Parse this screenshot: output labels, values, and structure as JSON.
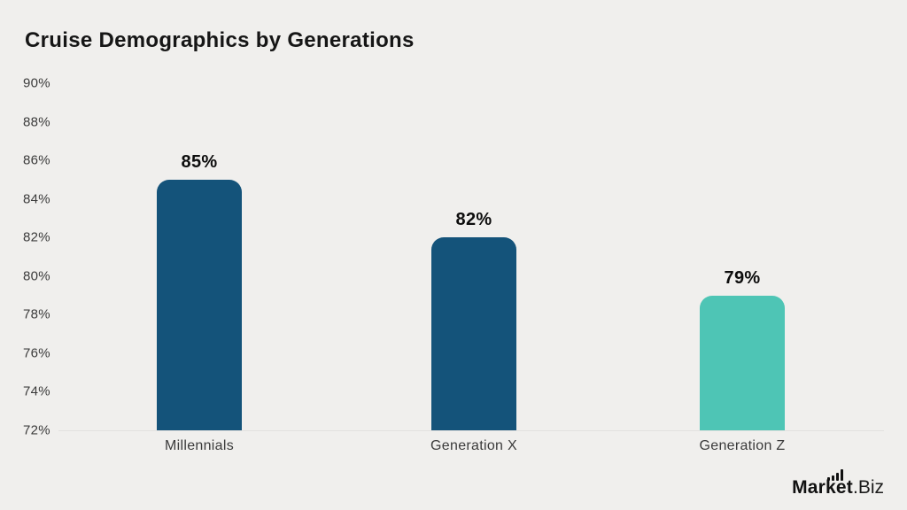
{
  "title": "Cruise Demographics by Generations",
  "colors": {
    "background": "#f0efed",
    "bar_primary": "#14537a",
    "bar_accent": "#4ec5b5",
    "title_text": "#161616",
    "axis_text": "#3b3b3b",
    "value_text": "#0d0d0d",
    "baseline": "#e2e1df"
  },
  "chart_data": {
    "type": "bar",
    "title": "Cruise Demographics by Generations",
    "categories": [
      "Millennials",
      "Generation X",
      "Generation Z"
    ],
    "values": [
      85,
      82,
      79
    ],
    "value_labels": [
      "85%",
      "82%",
      "79%"
    ],
    "bar_colors": [
      "#14537a",
      "#14537a",
      "#4ec5b5"
    ],
    "xlabel": "",
    "ylabel": "",
    "ylim": [
      72,
      90
    ],
    "ytick_step": 2,
    "ytick_labels": [
      "90%",
      "88%",
      "86%",
      "84%",
      "82%",
      "80%",
      "78%",
      "76%",
      "74%",
      "72%"
    ],
    "grid": false,
    "legend_position": "none"
  },
  "branding": {
    "logo_bold": "Market",
    "logo_light": ".Biz",
    "logo_icon": "bar-chart-icon"
  }
}
